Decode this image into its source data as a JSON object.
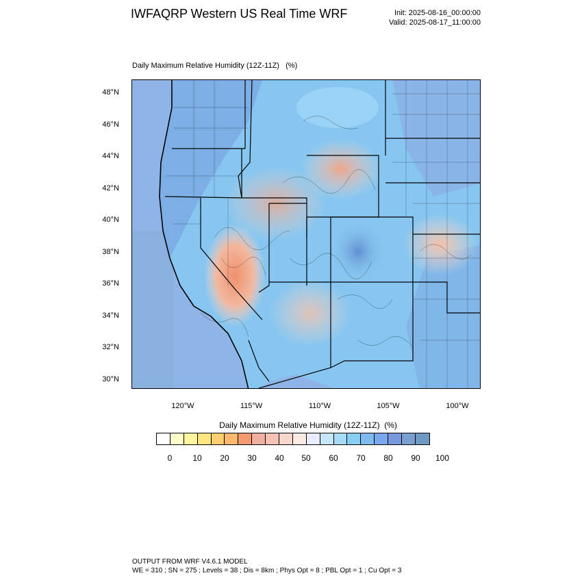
{
  "header": {
    "title": "IWFAQRP Western US Real Time WRF",
    "init": "Init: 2025-08-16_00:00:00",
    "valid": "Valid: 2025-08-17_11:00:00"
  },
  "map": {
    "subtitle": "Daily Maximum Relative Humidity (12Z-11Z)   (%)",
    "lat_labels": [
      "48°N",
      "46°N",
      "44°N",
      "42°N",
      "40°N",
      "38°N",
      "36°N",
      "34°N",
      "32°N",
      "30°N"
    ],
    "lon_labels": [
      "120°W",
      "115°W",
      "110°W",
      "105°W",
      "100°W"
    ],
    "field": "Daily Maximum Relative Humidity",
    "colors": {
      "ocean": "#8fb4e6",
      "dry": "#f0a080",
      "moist": "#7ec8f0",
      "wet": "#6fa0d8"
    }
  },
  "colorbar": {
    "title": "Daily Maximum Relative Humidity (12Z-11Z)  (%)",
    "colors": [
      "#ffffff",
      "#ffffc8",
      "#fff5a0",
      "#ffe680",
      "#ffd070",
      "#ffb870",
      "#f59a70",
      "#f0b0a0",
      "#f5c2b5",
      "#f8d8cc",
      "#fbebe4",
      "#e8eeff",
      "#c6e6ff",
      "#a6dcf8",
      "#86cff2",
      "#7ebcf0",
      "#7aa8ec",
      "#7898e0",
      "#7aa0d0",
      "#6e98c4"
    ],
    "labels": [
      "0",
      "10",
      "20",
      "30",
      "40",
      "50",
      "60",
      "70",
      "80",
      "90",
      "100"
    ]
  },
  "footer": {
    "line1": "OUTPUT FROM WRF V4.6.1 MODEL",
    "line2": "WE = 310 ; SN = 275 ; Levels = 38 ; Dis = 8km ; Phys Opt = 8 ; PBL Opt = 1 ; Cu Opt = 3"
  }
}
